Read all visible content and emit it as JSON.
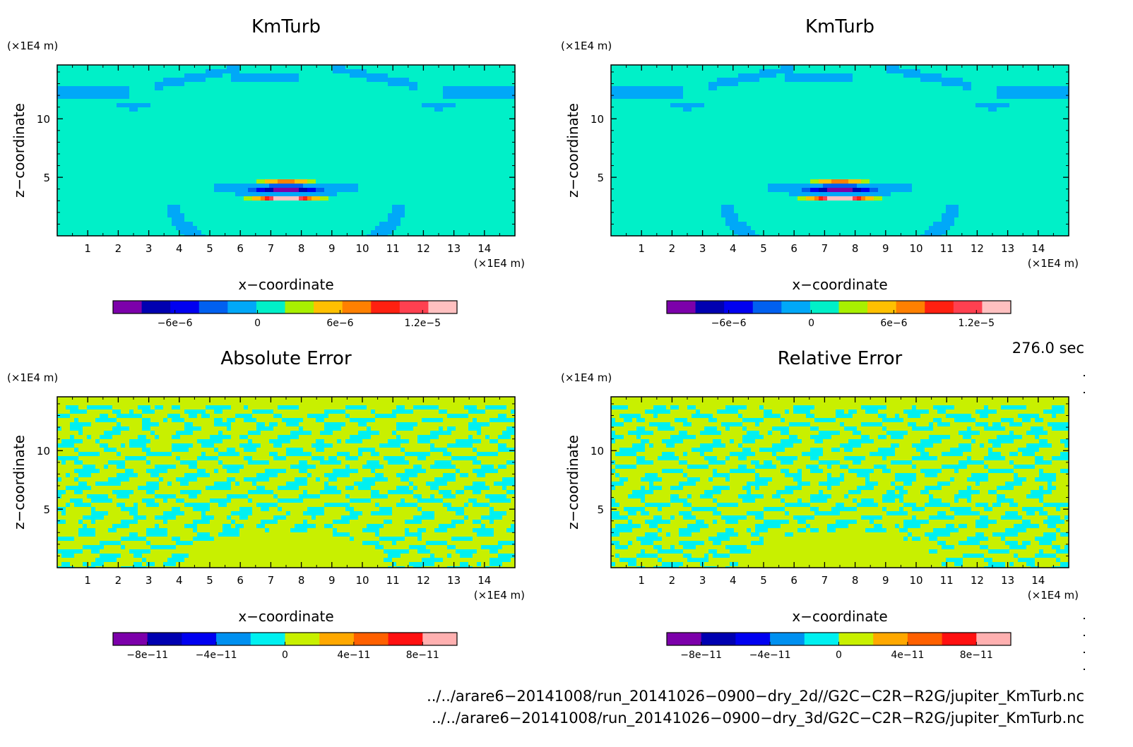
{
  "chart_data": [
    {
      "type": "heatmap",
      "title": "KmTurb",
      "xlabel": "x−coordinate",
      "ylabel": "z−coordinate",
      "x_unit": "(×1E4 m)",
      "y_unit": "(×1E4 m)",
      "xlim": [
        0,
        15
      ],
      "ylim": [
        0,
        14.6
      ],
      "x_ticks": [
        "1",
        "2",
        "3",
        "4",
        "5",
        "6",
        "7",
        "8",
        "9",
        "10",
        "11",
        "12",
        "13",
        "14"
      ],
      "y_ticks": [
        "5",
        "10"
      ],
      "field": "turb",
      "colorbar": {
        "colors": [
          "#7c00aa",
          "#0000b0",
          "#0000f0",
          "#0060f0",
          "#00a8f8",
          "#00f0c8",
          "#a8f000",
          "#ffc000",
          "#ff8000",
          "#ff2010",
          "#ff4050",
          "#ffc0c0"
        ],
        "tick_labels": [
          "−6e−6",
          "0",
          "6e−6",
          "1.2e−5"
        ],
        "tick_values": [
          -6e-06,
          0,
          6e-06,
          1.2e-05
        ],
        "min": -1.05e-05,
        "max": 1.45e-05
      }
    },
    {
      "type": "heatmap",
      "title": "KmTurb",
      "xlabel": "x−coordinate",
      "ylabel": "z−coordinate",
      "x_unit": "(×1E4 m)",
      "y_unit": "(×1E4 m)",
      "xlim": [
        0,
        15
      ],
      "ylim": [
        0,
        14.6
      ],
      "x_ticks": [
        "1",
        "2",
        "3",
        "4",
        "5",
        "6",
        "7",
        "8",
        "9",
        "10",
        "11",
        "12",
        "13",
        "14"
      ],
      "y_ticks": [
        "5",
        "10"
      ],
      "field": "turb",
      "colorbar": {
        "colors": [
          "#7c00aa",
          "#0000b0",
          "#0000f0",
          "#0060f0",
          "#00a8f8",
          "#00f0c8",
          "#a8f000",
          "#ffc000",
          "#ff8000",
          "#ff2010",
          "#ff4050",
          "#ffc0c0"
        ],
        "tick_labels": [
          "−6e−6",
          "0",
          "6e−6",
          "1.2e−5"
        ],
        "tick_values": [
          -6e-06,
          0,
          6e-06,
          1.2e-05
        ],
        "min": -1.05e-05,
        "max": 1.45e-05
      }
    },
    {
      "type": "heatmap",
      "title": "Absolute Error",
      "xlabel": "x−coordinate",
      "ylabel": "z−coordinate",
      "x_unit": "(×1E4 m)",
      "y_unit": "(×1E4 m)",
      "xlim": [
        0,
        15
      ],
      "ylim": [
        0,
        14.6
      ],
      "x_ticks": [
        "1",
        "2",
        "3",
        "4",
        "5",
        "6",
        "7",
        "8",
        "9",
        "10",
        "11",
        "12",
        "13",
        "14"
      ],
      "y_ticks": [
        "5",
        "10"
      ],
      "field": "noise",
      "colorbar": {
        "colors": [
          "#7c00aa",
          "#0000b0",
          "#0000f0",
          "#0090f0",
          "#00f0f0",
          "#c8f000",
          "#ffa800",
          "#ff6000",
          "#ff1010",
          "#ffb0b0"
        ],
        "tick_labels": [
          "−8e−11",
          "−4e−11",
          "0",
          "4e−11",
          "8e−11"
        ],
        "tick_values": [
          -8e-11,
          -4e-11,
          0,
          4e-11,
          8e-11
        ],
        "min": -1e-10,
        "max": 1e-10
      }
    },
    {
      "type": "heatmap",
      "title": "Relative Error",
      "xlabel": "x−coordinate",
      "ylabel": "z−coordinate",
      "x_unit": "(×1E4 m)",
      "y_unit": "(×1E4 m)",
      "xlim": [
        0,
        15
      ],
      "ylim": [
        0,
        14.6
      ],
      "x_ticks": [
        "1",
        "2",
        "3",
        "4",
        "5",
        "6",
        "7",
        "8",
        "9",
        "10",
        "11",
        "12",
        "13",
        "14"
      ],
      "y_ticks": [
        "5",
        "10"
      ],
      "field": "noise",
      "colorbar": {
        "colors": [
          "#7c00aa",
          "#0000b0",
          "#0000f0",
          "#0090f0",
          "#00f0f0",
          "#c8f000",
          "#ffa800",
          "#ff6000",
          "#ff1010",
          "#ffb0b0"
        ],
        "tick_labels": [
          "−8e−11",
          "−4e−11",
          "0",
          "4e−11",
          "8e−11"
        ],
        "tick_values": [
          -8e-11,
          -4e-11,
          0,
          4e-11,
          8e-11
        ],
        "min": -1e-10,
        "max": 1e-10
      }
    }
  ],
  "time_label": "276.0 sec",
  "file_paths": [
    "../../arare6−20141008/run_20141026−0900−dry_2d//G2C−C2R−R2G/jupiter_KmTurb.nc",
    "../../arare6−20141008/run_20141026−0900−dry_3d/G2C−C2R−R2G/jupiter_KmTurb.nc"
  ]
}
